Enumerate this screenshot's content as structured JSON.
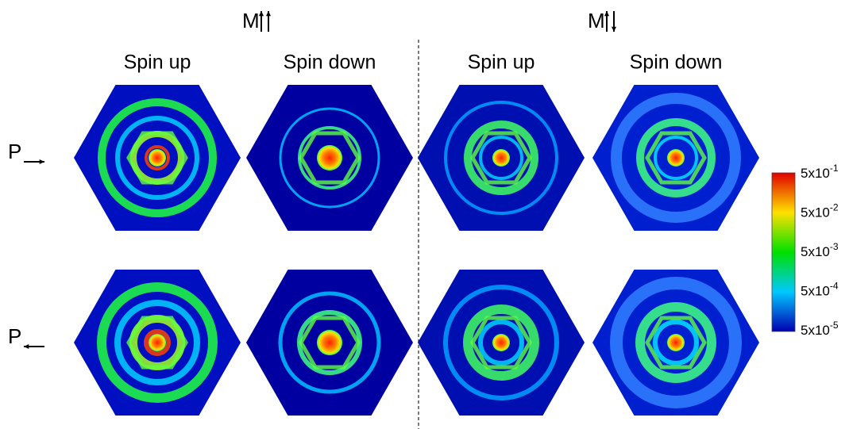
{
  "groups": [
    {
      "title": "M",
      "columns": [
        "Spin up",
        "Spin down"
      ]
    },
    {
      "title": "M",
      "columns": [
        "Spin up",
        "Spin down"
      ]
    }
  ],
  "rows": [
    {
      "label": "P"
    },
    {
      "label": "P"
    }
  ],
  "colorbar": {
    "ticks": [
      {
        "base": "5x10",
        "exp": "-1"
      },
      {
        "base": "5x10",
        "exp": "-2"
      },
      {
        "base": "5x10",
        "exp": "-3"
      },
      {
        "base": "5x10",
        "exp": "-4"
      },
      {
        "base": "5x10",
        "exp": "-5"
      }
    ]
  }
}
